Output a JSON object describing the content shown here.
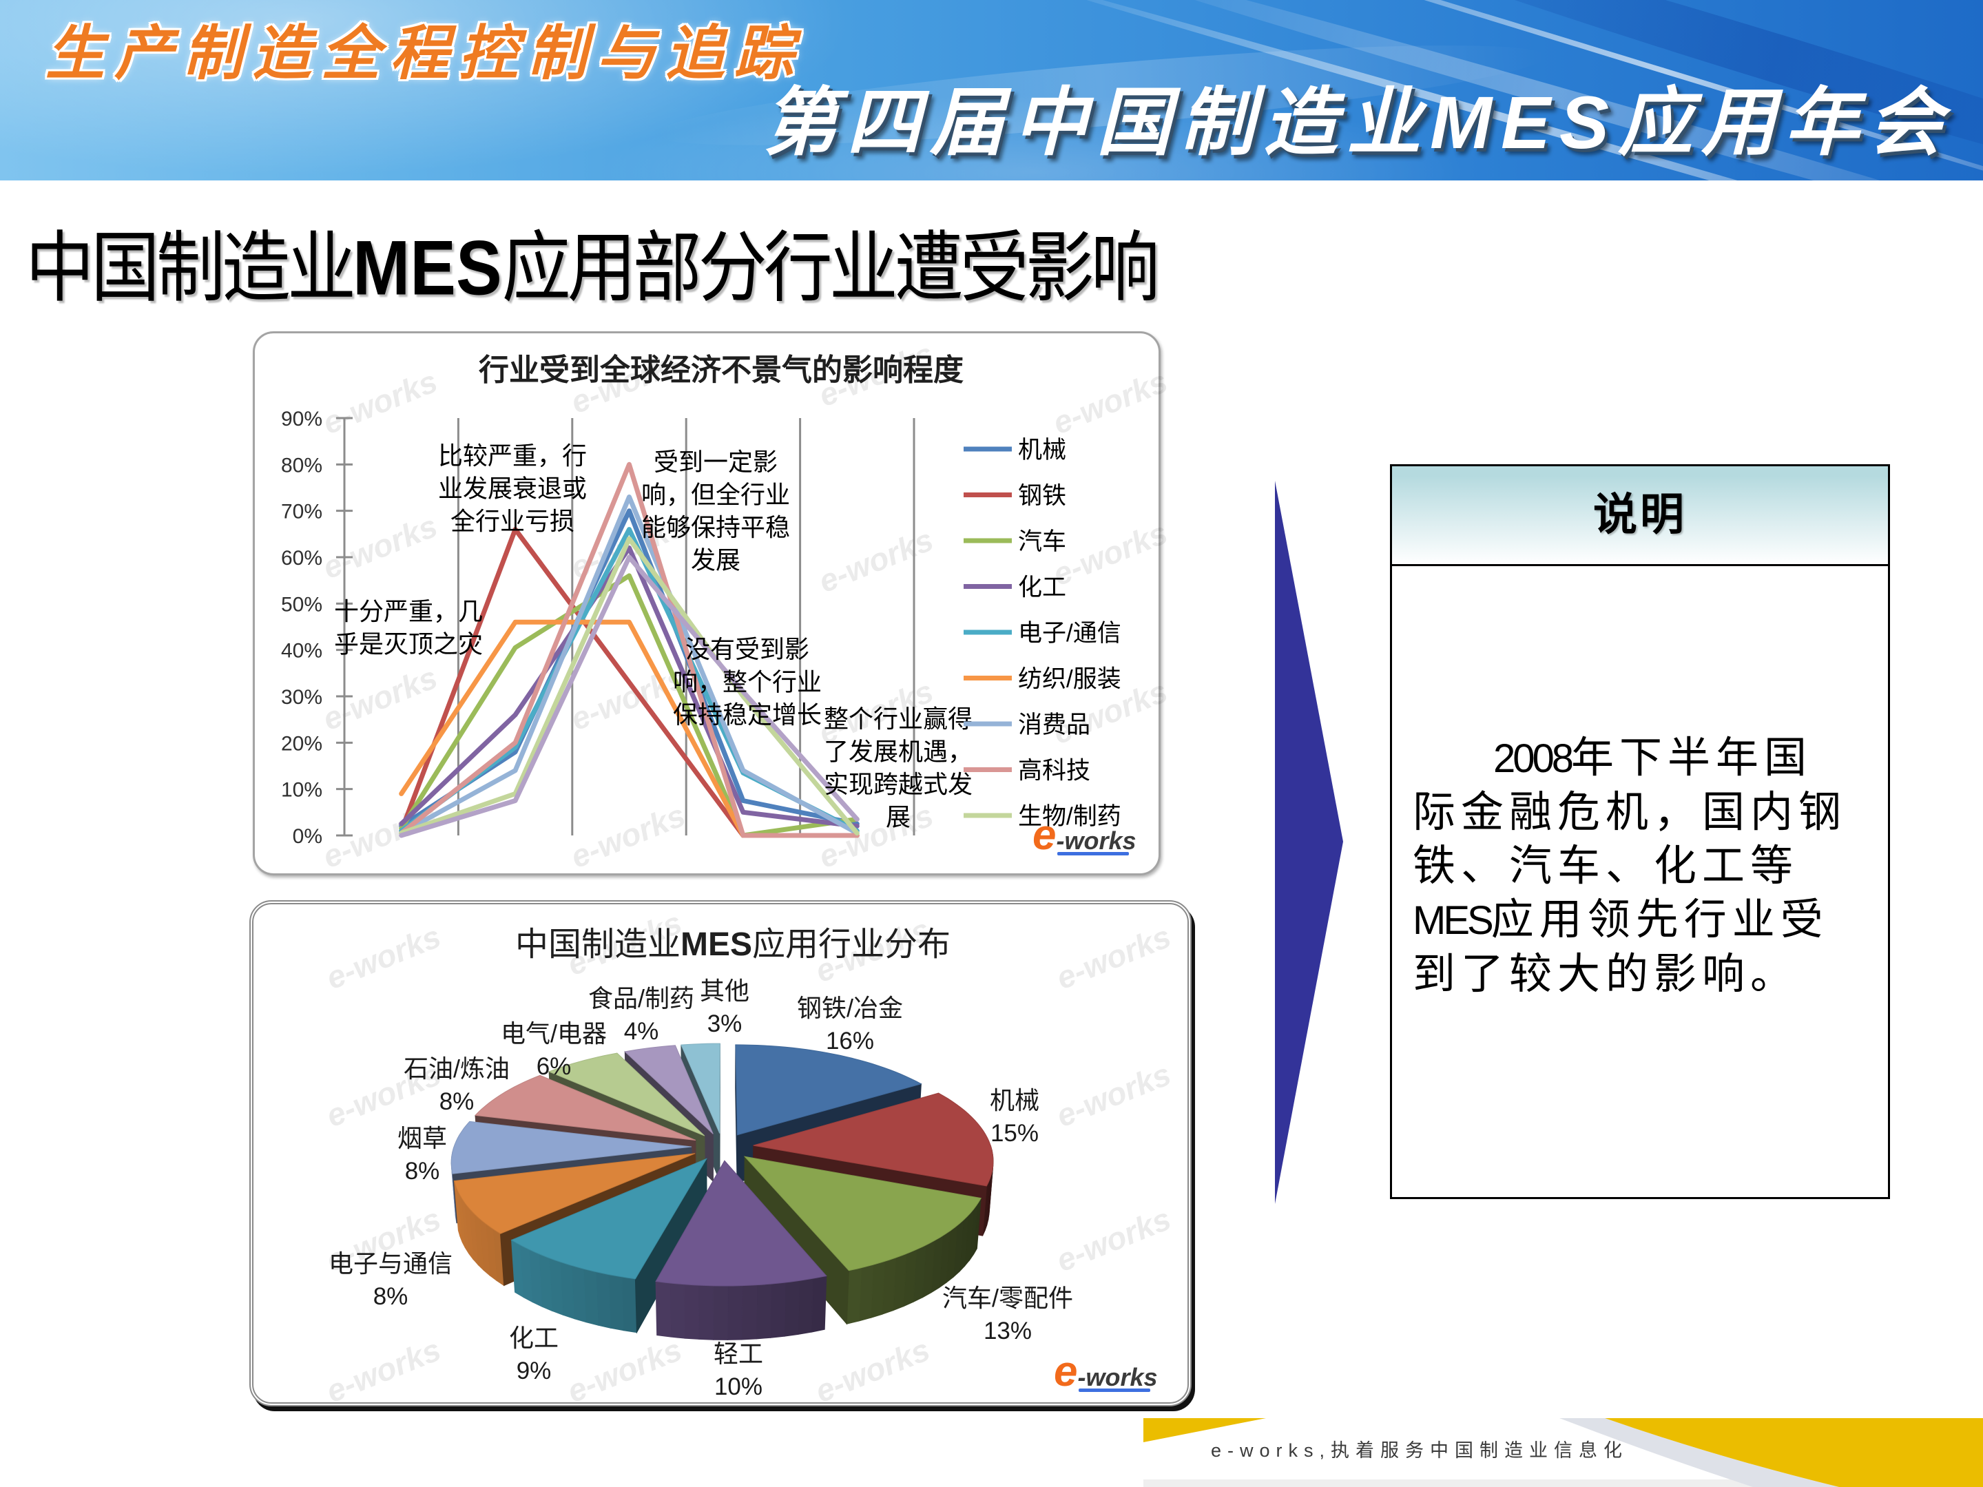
{
  "banner": {
    "subtitle": "生产制造全程控制与追踪",
    "title_prefix": "第四届中国制造业",
    "title_latin": "MES",
    "title_suffix": "应用年会",
    "subtitle_color": "#EF7B22",
    "title_color": "#FFFFFF"
  },
  "slide": {
    "title_prefix": "中国制造业",
    "title_latin": "MES",
    "title_suffix": "应用部分行业遭受影响"
  },
  "arrow": {
    "icon": "triangle-right",
    "color": "#333399"
  },
  "description": {
    "heading": "说明",
    "heading_gradient": [
      "#B5DADF",
      "#FFFFFF"
    ],
    "lines": [
      "2008年下半年国",
      "际金融危机，国内钢",
      "铁、汽车、化工等",
      "MES应用领先行业受",
      "到了较大的影响。"
    ]
  },
  "footer": {
    "slogan": "e-works,执着服务中国制造业信息化",
    "accent_color": "#EBBD00"
  },
  "brand": {
    "logo_mark": "e",
    "logo_word": "-works",
    "watermark": "e-works"
  },
  "chart_data": [
    {
      "type": "line",
      "title": "行业受到全球经济不景气的影响程度",
      "xlabel": "",
      "ylabel": "",
      "categories": [
        "十分严重，几乎是灭顶之灾",
        "比较严重，行业发展衰退或全行业亏损",
        "受到一定影响，但全行业能够保持平稳发展",
        "没有受到影响，整个行业保持稳定增长",
        "整个行业赢得了发展机遇，实现跨越式发展"
      ],
      "category_annotations": [
        [
          "十分严重，几",
          "乎是灭顶之灾"
        ],
        [
          "比较严重，行",
          "业发展衰退或",
          "全行业亏损"
        ],
        [
          "受到一定影",
          "响，但全行业",
          "能够保持平稳",
          "发展"
        ],
        [
          "没有受到影",
          "响，整个行业",
          "保持稳定增长"
        ],
        [
          "整个行业赢得",
          "了发展机遇，",
          "实现跨越式发",
          "展"
        ]
      ],
      "ylim": [
        0,
        90
      ],
      "yticks": [
        "0%",
        "10%",
        "20%",
        "30%",
        "40%",
        "50%",
        "60%",
        "70%",
        "80%",
        "90%"
      ],
      "unit": "%",
      "grid": {
        "vertical_category_separators": true,
        "horizontal": false
      },
      "legend_position": "right",
      "series": [
        {
          "name": "机械",
          "color": "#4F81BD",
          "values": [
            2,
            18,
            70,
            7.5,
            2.5
          ]
        },
        {
          "name": "钢铁",
          "color": "#C0504D",
          "values": [
            1,
            66,
            33,
            0,
            0
          ]
        },
        {
          "name": "汽车",
          "color": "#9BBB59",
          "values": [
            1.5,
            40.5,
            56,
            0,
            3.5
          ]
        },
        {
          "name": "化工",
          "color": "#8064A2",
          "values": [
            2.5,
            26,
            62,
            5,
            2
          ]
        },
        {
          "name": "电子/通信",
          "color": "#4BACC6",
          "values": [
            1,
            19,
            66,
            13.5,
            1
          ]
        },
        {
          "name": "纺织/服装",
          "color": "#F79646",
          "values": [
            9,
            46,
            46,
            0,
            0
          ]
        },
        {
          "name": "消费品",
          "color": "#95B3D7",
          "values": [
            0.5,
            14,
            73,
            14,
            0.5
          ]
        },
        {
          "name": "高科技",
          "color": "#D99694",
          "values": [
            0.5,
            20,
            80,
            0,
            0
          ]
        },
        {
          "name": "生物/制药",
          "color": "#C3D69B",
          "values": [
            0.5,
            9,
            64,
            30,
            0.5
          ]
        },
        {
          "name": "",
          "color": "#B3A2C7",
          "values": [
            0,
            7.5,
            60,
            31,
            3.5
          ],
          "in_legend": false
        }
      ]
    },
    {
      "type": "pie",
      "style": "3d-exploded",
      "title": "中国制造业MES应用行业分布",
      "start_angle": 0,
      "direction": "clockwise",
      "categories": [
        "钢铁/冶金",
        "机械",
        "汽车/零配件",
        "轻工",
        "化工",
        "电子与通信",
        "烟草",
        "石油/炼油",
        "电气/电器",
        "食品/制药",
        "其他"
      ],
      "values": [
        16,
        15,
        13,
        10,
        9,
        8,
        8,
        8,
        6,
        4,
        3
      ],
      "labels": [
        "16%",
        "15%",
        "13%",
        "10%",
        "9%",
        "8%",
        "8%",
        "8%",
        "6%",
        "4%",
        "3%"
      ],
      "colors": [
        "#4571A6",
        "#A84442",
        "#89A54E",
        "#6F578F",
        "#3F97AE",
        "#DB843A",
        "#8EA5D0",
        "#D08E8C",
        "#B6CB90",
        "#A797BF",
        "#8EC1D3"
      ]
    }
  ]
}
